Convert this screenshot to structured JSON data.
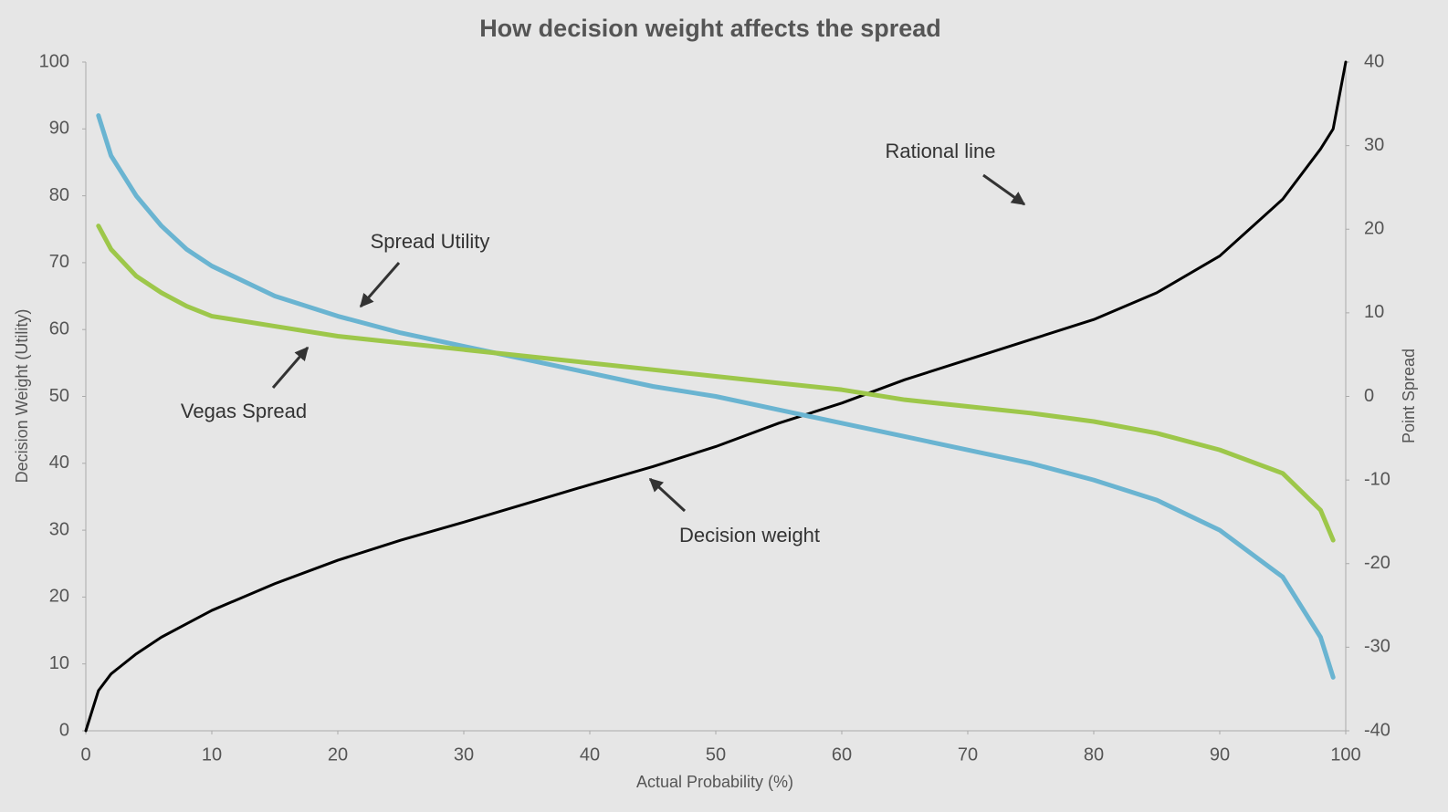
{
  "chart_data": {
    "type": "line",
    "title": "How decision weight affects the spread",
    "x_label": "Actual Probability (%)",
    "y_label": "Decision Weight (Utility)",
    "y2_label": "Point Spread",
    "x": [
      0,
      1,
      2,
      4,
      6,
      8,
      10,
      15,
      20,
      25,
      30,
      35,
      40,
      45,
      50,
      55,
      60,
      65,
      70,
      75,
      80,
      85,
      90,
      95,
      98,
      99,
      100
    ],
    "xlim": [
      0,
      100
    ],
    "xticks": [
      0,
      10,
      20,
      30,
      40,
      50,
      60,
      70,
      80,
      90,
      100
    ],
    "ylim": [
      0,
      100
    ],
    "yticks": [
      0,
      10,
      20,
      30,
      40,
      50,
      60,
      70,
      80,
      90,
      100
    ],
    "y2lim": [
      -40,
      40
    ],
    "y2ticks": [
      -40,
      -30,
      -20,
      -10,
      0,
      10,
      20,
      30,
      40
    ],
    "grid": false,
    "series": [
      {
        "name": "Decision weight",
        "color": "#000000",
        "axis": "y",
        "dash": false,
        "values": [
          0,
          6,
          8.5,
          11.5,
          14,
          16,
          18,
          22,
          25.5,
          28.5,
          31.2,
          34,
          36.8,
          39.5,
          42.5,
          46,
          49,
          52.5,
          55.5,
          58.5,
          61.5,
          65.5,
          71,
          79.5,
          87,
          90,
          100
        ]
      },
      {
        "name": "Rational line",
        "color": "#aaaaaa",
        "axis": "y",
        "dash": true,
        "values": [
          0,
          null,
          null,
          null,
          null,
          null,
          null,
          null,
          null,
          null,
          null,
          null,
          null,
          null,
          null,
          null,
          null,
          null,
          null,
          null,
          null,
          null,
          null,
          null,
          null,
          null,
          100
        ]
      },
      {
        "name": "Spread Utility",
        "color": "#6ab4d1",
        "axis": "y2",
        "dash": false,
        "values": [
          null,
          33.6,
          28.8,
          24,
          20.4,
          17.6,
          15.6,
          12,
          9.6,
          7.6,
          6,
          4.4,
          2.8,
          1.2,
          0,
          -1.6,
          -3.2,
          -4.8,
          -6.4,
          -8,
          -10,
          -12.4,
          -16,
          -21.6,
          -28.8,
          -33.6,
          null
        ]
      },
      {
        "name": "Vegas Spread",
        "color": "#9dc74a",
        "axis": "y2",
        "dash": false,
        "values": [
          null,
          20.4,
          17.6,
          14.4,
          12.4,
          10.8,
          9.6,
          8.4,
          7.2,
          6.4,
          5.6,
          4.8,
          4,
          3.2,
          2.4,
          1.6,
          0.8,
          -0.4,
          -1.2,
          -2,
          -3,
          -4.4,
          -6.4,
          -9.2,
          -13.6,
          -17.2,
          null
        ]
      }
    ]
  }
}
